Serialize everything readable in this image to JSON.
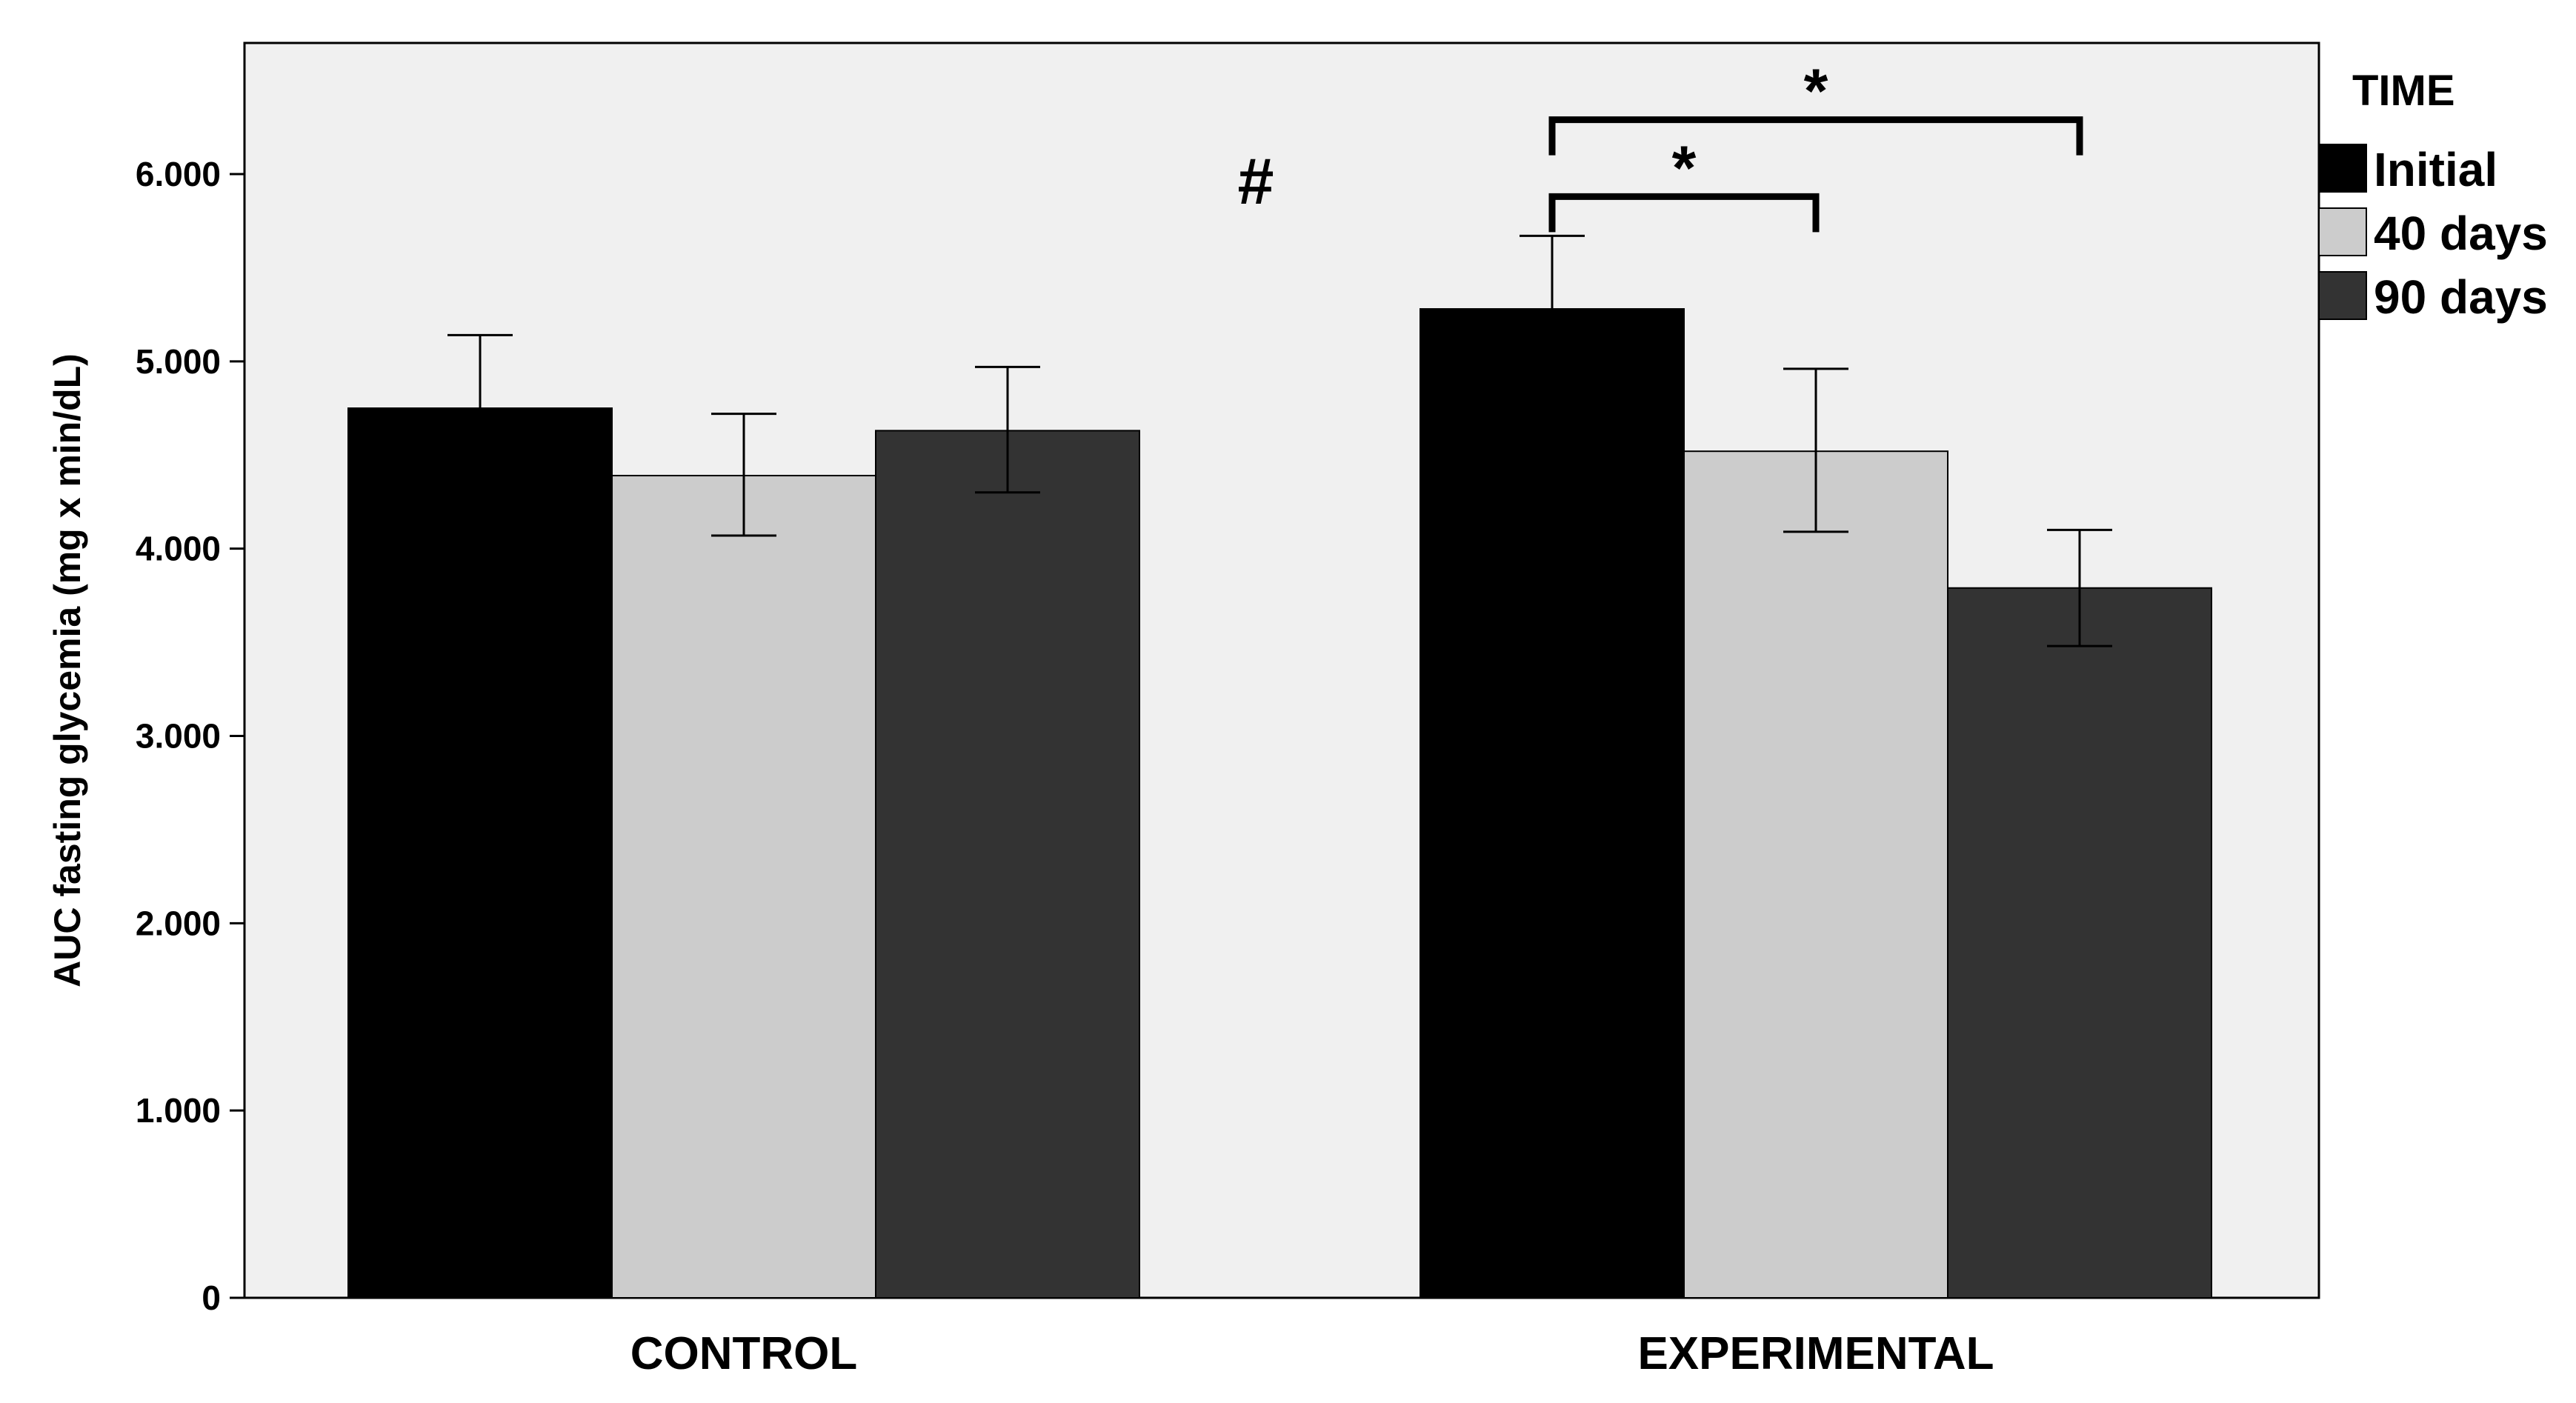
{
  "chart_data": {
    "type": "bar",
    "title": "",
    "xlabel": "",
    "ylabel": "AUC fasting glycemia (mg x min/dL)",
    "ylim": [
      0,
      6700
    ],
    "yticks": [
      0,
      1000,
      2000,
      3000,
      4000,
      5000,
      6000
    ],
    "ytick_labels": [
      "0",
      "1.000",
      "2.000",
      "3.000",
      "4.000",
      "5.000",
      "6.000"
    ],
    "categories": [
      "CONTROL",
      "EXPERIMENTAL"
    ],
    "legend": {
      "title": "TIME",
      "position": "right"
    },
    "series": [
      {
        "name": "Initial",
        "color": "#000000",
        "values": [
          4750,
          5280
        ],
        "error_low": [
          4400,
          4890
        ],
        "error_high": [
          5140,
          5670
        ]
      },
      {
        "name": "40 days",
        "color": "#cccccc",
        "values": [
          4390,
          4520
        ],
        "error_low": [
          4070,
          4090
        ],
        "error_high": [
          4720,
          4960
        ]
      },
      {
        "name": "90 days",
        "color": "#333333",
        "values": [
          4630,
          3790
        ],
        "error_low": [
          4300,
          3480
        ],
        "error_high": [
          4970,
          4100
        ]
      }
    ],
    "annotations": [
      {
        "type": "symbol",
        "text": "#",
        "category": 0,
        "anchor": "between-groups",
        "y": 5960
      },
      {
        "type": "bracket",
        "text": "*",
        "category": 1,
        "from_series": 0,
        "to_series": 1,
        "y": 5880
      },
      {
        "type": "bracket",
        "text": "*",
        "category": 1,
        "from_series": 0,
        "to_series": 2,
        "y": 6290
      }
    ]
  }
}
